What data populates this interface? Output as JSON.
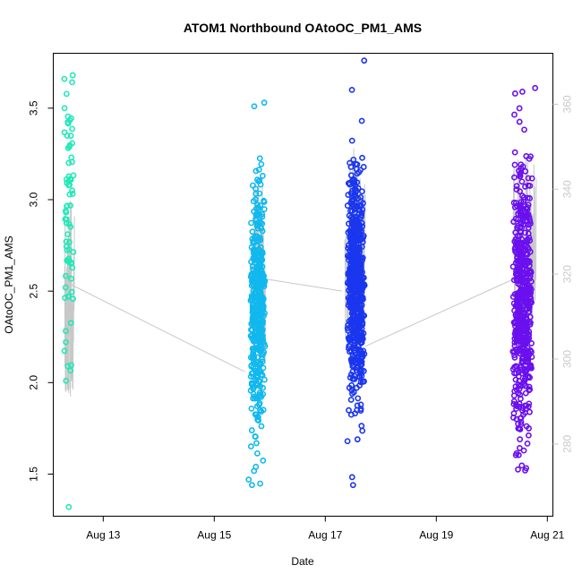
{
  "chart_data": {
    "type": "scatter",
    "title": "ATOM1 Northbound OAtoOC_PM1_AMS",
    "xlabel": "Date",
    "ylabel": "OAtoOC_PM1_AMS",
    "xlim": [
      12.1,
      21.1
    ],
    "ylim": [
      1.27,
      3.8
    ],
    "y2lim": [
      263,
      372
    ],
    "x_ticks": [
      13,
      15,
      17,
      19,
      21
    ],
    "x_tick_labels": [
      "Aug 13",
      "Aug 15",
      "Aug 17",
      "Aug 19",
      "Aug 21"
    ],
    "y_ticks": [
      1.5,
      2.0,
      2.5,
      3.0,
      3.5
    ],
    "y_tick_labels": [
      "1.5",
      "2.0",
      "2.5",
      "3.0",
      "3.5"
    ],
    "y2_ticks": [
      280,
      300,
      320,
      340,
      360
    ],
    "y2_tick_labels": [
      "280",
      "300",
      "320",
      "340",
      "360"
    ],
    "grid": false,
    "series": [
      {
        "color": "#22e8b8",
        "x_center": 12.38,
        "x_spread": 0.09,
        "y_mean": 2.95,
        "y_sd": 0.38,
        "count": 70,
        "y_min": 1.32,
        "y_max": 3.68,
        "outliers": [
          [
            12.38,
            1.32
          ],
          [
            12.33,
            2.01
          ],
          [
            12.3,
            3.66
          ],
          [
            12.45,
            3.68
          ]
        ]
      },
      {
        "color": "#10b8ee",
        "x_center": 15.78,
        "x_spread": 0.14,
        "y_mean": 2.42,
        "y_sd": 0.33,
        "count": 420,
        "y_min": 1.44,
        "y_max": 3.53,
        "outliers": [
          [
            15.68,
            1.44
          ],
          [
            15.62,
            1.47
          ],
          [
            15.75,
            1.54
          ],
          [
            15.9,
            3.53
          ],
          [
            15.72,
            3.51
          ]
        ]
      },
      {
        "color": "#1a36ee",
        "x_center": 17.55,
        "x_spread": 0.16,
        "y_mean": 2.55,
        "y_sd": 0.32,
        "count": 620,
        "y_min": 1.44,
        "y_max": 3.76,
        "outliers": [
          [
            17.5,
            1.44
          ],
          [
            17.4,
            1.68
          ],
          [
            17.58,
            1.69
          ],
          [
            17.7,
            3.76
          ],
          [
            17.48,
            3.6
          ]
        ]
      },
      {
        "color": "#6a10ee",
        "x_center": 20.55,
        "x_spread": 0.18,
        "y_mean": 2.42,
        "y_sd": 0.34,
        "count": 560,
        "y_min": 1.52,
        "y_max": 3.61,
        "outliers": [
          [
            20.6,
            1.52
          ],
          [
            20.78,
            3.61
          ],
          [
            20.55,
            3.59
          ],
          [
            20.42,
            3.58
          ]
        ]
      }
    ],
    "secondary_line": {
      "color": "#c8c8c8",
      "axis": "right",
      "segments": [
        {
          "x_start": 12.3,
          "x_end": 12.48,
          "y_range": [
            291,
            338
          ]
        },
        {
          "x_start": 15.68,
          "x_end": 15.92,
          "y_range": [
            297,
            346
          ]
        },
        {
          "x_start": 17.35,
          "x_end": 17.72,
          "y_range": [
            300,
            350
          ]
        },
        {
          "x_start": 20.38,
          "x_end": 20.8,
          "y_range": [
            305,
            348
          ]
        }
      ],
      "connectors": [
        [
          12.35,
          318
        ],
        [
          15.55,
          297
        ],
        [
          15.85,
          319
        ],
        [
          17.3,
          316
        ],
        [
          17.72,
          303
        ],
        [
          20.42,
          319
        ]
      ]
    }
  }
}
